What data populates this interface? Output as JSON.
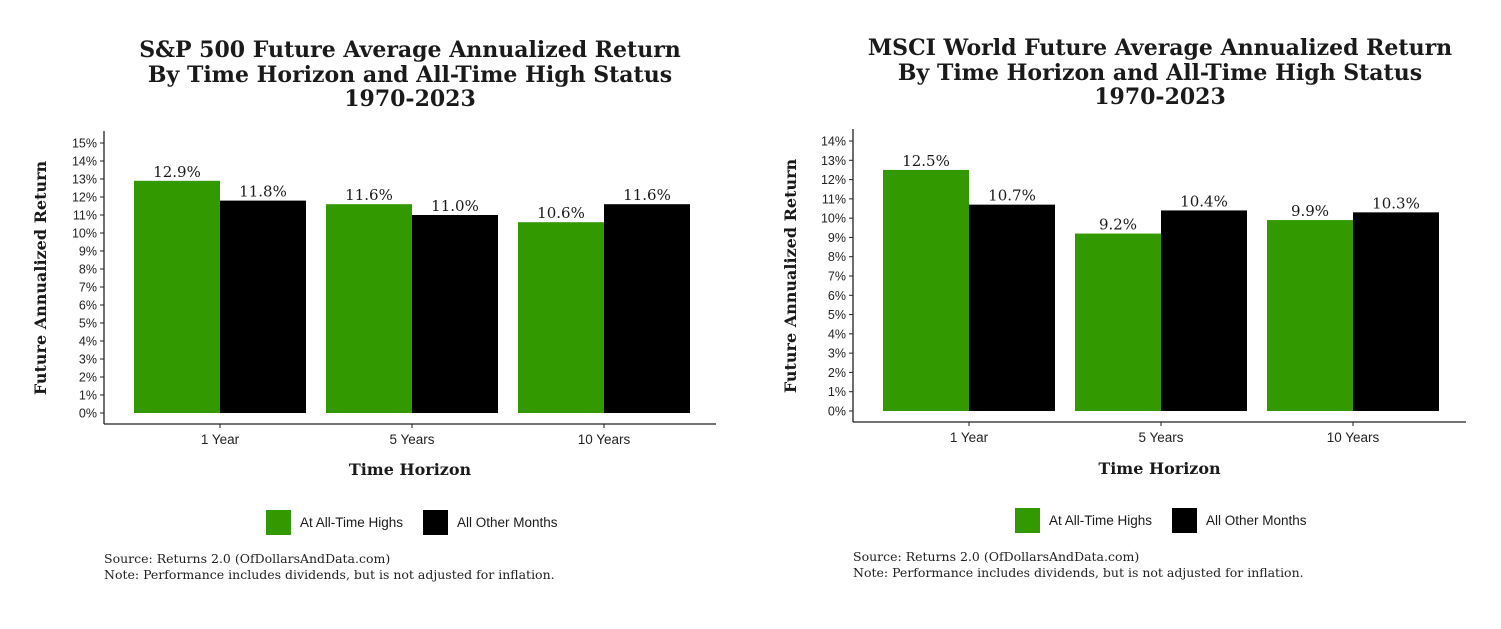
{
  "colors": {
    "ath": "#339900",
    "other": "#000000"
  },
  "chart_data": [
    {
      "type": "bar",
      "title_lines": [
        "S&P 500 Future Average Annualized Return",
        "By Time Horizon and All-Time High Status",
        "1970-2023"
      ],
      "xlabel": "Time Horizon",
      "ylabel": "Future Annualized Return",
      "categories": [
        "1 Year",
        "5 Years",
        "10 Years"
      ],
      "ylim": [
        0,
        15
      ],
      "yticks": [
        "0%",
        "1%",
        "2%",
        "3%",
        "4%",
        "5%",
        "6%",
        "7%",
        "8%",
        "9%",
        "10%",
        "11%",
        "12%",
        "13%",
        "14%",
        "15%"
      ],
      "series": [
        {
          "name": "At All-Time Highs",
          "values": [
            12.9,
            11.6,
            10.6
          ],
          "labels": [
            "12.9%",
            "11.6%",
            "10.6%"
          ]
        },
        {
          "name": "All Other Months",
          "values": [
            11.8,
            11.0,
            11.6
          ],
          "labels": [
            "11.8%",
            "11.0%",
            "11.6%"
          ]
        }
      ],
      "legend_position": "bottom",
      "grid": false,
      "source": "Source:  Returns 2.0 (OfDollarsAndData.com)",
      "note": "Note: Performance includes dividends, but is not adjusted for inflation."
    },
    {
      "type": "bar",
      "title_lines": [
        "MSCI World Future Average Annualized Return",
        "By Time Horizon and All-Time High Status",
        "1970-2023"
      ],
      "xlabel": "Time Horizon",
      "ylabel": "Future Annualized Return",
      "categories": [
        "1 Year",
        "5 Years",
        "10 Years"
      ],
      "ylim": [
        0,
        14
      ],
      "yticks": [
        "0%",
        "1%",
        "2%",
        "3%",
        "4%",
        "5%",
        "6%",
        "7%",
        "8%",
        "9%",
        "10%",
        "11%",
        "12%",
        "13%",
        "14%"
      ],
      "series": [
        {
          "name": "At All-Time Highs",
          "values": [
            12.5,
            9.2,
            9.9
          ],
          "labels": [
            "12.5%",
            "9.2%",
            "9.9%"
          ]
        },
        {
          "name": "All Other Months",
          "values": [
            10.7,
            10.4,
            10.3
          ],
          "labels": [
            "10.7%",
            "10.4%",
            "10.3%"
          ]
        }
      ],
      "legend_position": "bottom",
      "grid": false,
      "source": "Source:  Returns 2.0 (OfDollarsAndData.com)",
      "note": "Note: Performance includes dividends, but is not adjusted for inflation."
    }
  ]
}
